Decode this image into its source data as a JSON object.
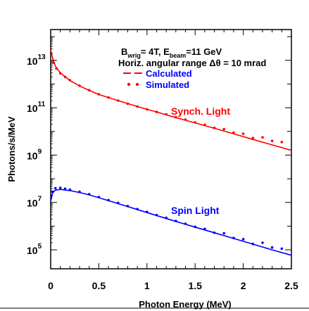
{
  "chart_data": {
    "type": "line",
    "xlabel": "Photon Energy (MeV)",
    "ylabel": "Photons/s/MeV",
    "xlim": [
      0,
      2.5
    ],
    "ylim_log10": [
      4.2,
      14.3
    ],
    "y_scale": "log",
    "x_ticks": [
      "0",
      "0.5",
      "1",
      "1.5",
      "2",
      "2.5"
    ],
    "y_ticks": [
      {
        "base": "10",
        "exp": "13",
        "value_log10": 13
      },
      {
        "base": "10",
        "exp": "11",
        "value_log10": 11
      },
      {
        "base": "10",
        "exp": "9",
        "value_log10": 9
      },
      {
        "base": "10",
        "exp": "7",
        "value_log10": 7
      },
      {
        "base": "10",
        "exp": "5",
        "value_log10": 5
      }
    ],
    "legend": {
      "line1": {
        "b": "B",
        "b_sub": "wrig",
        "mid": "= 4T, E",
        "e_sub": "beam",
        "end": "=11 GeV"
      },
      "line2": "Horiz. angular range Δθ = 10 mrad",
      "calculated": "Calculated",
      "simulated": "Simulated",
      "placement": "top-right"
    },
    "annotations": {
      "synch": "Synch. Light",
      "spin": "Spin Light"
    },
    "colors": {
      "synch": "#ff0000",
      "spin": "#0000ff",
      "simulated": "#ff0000"
    },
    "series": [
      {
        "name": "Synch. Light",
        "style": "calculated",
        "x": [
          0.0,
          0.02,
          0.05,
          0.1,
          0.2,
          0.3,
          0.4,
          0.5,
          0.7,
          0.9,
          1.1,
          1.3,
          1.5,
          1.7,
          1.9,
          2.1,
          2.3,
          2.5
        ],
        "log10_y": [
          13.45,
          13.1,
          12.75,
          12.47,
          12.15,
          11.92,
          11.73,
          11.56,
          11.3,
          11.05,
          10.82,
          10.58,
          10.36,
          10.13,
          9.9,
          9.66,
          9.43,
          9.2
        ]
      },
      {
        "name": "Synch. Light",
        "style": "simulated",
        "x": [
          0.03,
          0.06,
          0.1,
          0.15,
          0.2,
          0.3,
          0.4,
          0.5,
          0.6,
          0.7,
          0.8,
          0.9,
          1.0,
          1.1,
          1.2,
          1.3,
          1.4,
          1.5,
          1.6,
          1.7,
          1.8,
          1.9,
          2.0,
          2.1,
          2.2,
          2.3,
          2.4
        ],
        "log10_y": [
          12.9,
          12.65,
          12.45,
          12.3,
          12.16,
          11.93,
          11.74,
          11.57,
          11.43,
          11.3,
          11.17,
          11.05,
          10.93,
          10.82,
          10.72,
          10.6,
          10.5,
          10.38,
          10.28,
          10.15,
          10.1,
          9.95,
          9.9,
          9.72,
          9.75,
          9.6,
          9.55
        ]
      },
      {
        "name": "Spin Light",
        "style": "calculated",
        "x": [
          0.0,
          0.02,
          0.05,
          0.1,
          0.2,
          0.3,
          0.4,
          0.5,
          0.7,
          0.9,
          1.1,
          1.3,
          1.5,
          1.7,
          1.9,
          2.1,
          2.3,
          2.5
        ],
        "log10_y": [
          7.05,
          7.4,
          7.52,
          7.55,
          7.5,
          7.42,
          7.32,
          7.2,
          6.95,
          6.7,
          6.45,
          6.2,
          5.96,
          5.72,
          5.48,
          5.24,
          5.0,
          4.77
        ]
      },
      {
        "name": "Spin Light",
        "style": "simulated",
        "x": [
          0.02,
          0.05,
          0.1,
          0.15,
          0.2,
          0.3,
          0.4,
          0.5,
          0.6,
          0.7,
          0.8,
          0.9,
          1.0,
          1.1,
          1.2,
          1.3,
          1.4,
          1.5,
          1.6,
          1.7,
          1.8,
          1.9,
          2.0,
          2.1,
          2.2,
          2.3,
          2.4
        ],
        "log10_y": [
          7.45,
          7.6,
          7.62,
          7.58,
          7.54,
          7.45,
          7.35,
          7.23,
          7.1,
          6.98,
          6.85,
          6.72,
          6.6,
          6.47,
          6.35,
          6.22,
          6.1,
          5.97,
          5.88,
          5.72,
          5.7,
          5.5,
          5.45,
          5.25,
          5.3,
          5.1,
          5.05
        ]
      }
    ]
  }
}
